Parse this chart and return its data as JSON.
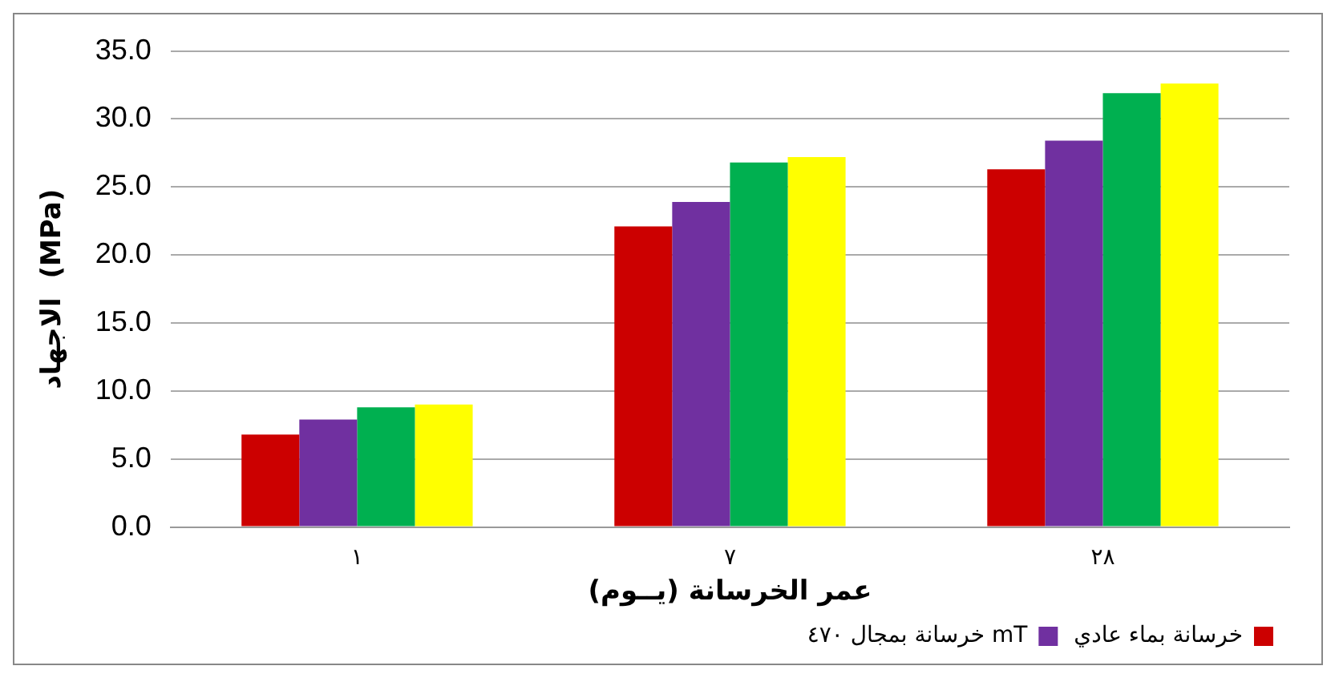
{
  "chart_data": {
    "type": "bar",
    "xlabel": "عمر الخرسانة (يــوم)",
    "ylabel": "الاجهاد  (MPa)",
    "categories": [
      "١",
      "٧",
      "٢٨"
    ],
    "series": [
      {
        "name": "خرسانة بماء عادي",
        "color": "#cc0000",
        "values": [
          6.8,
          22.1,
          26.3
        ]
      },
      {
        "name": "خرسانة بمجال ٤٧٠ mT",
        "color": "#7030a0",
        "values": [
          7.9,
          23.9,
          28.4
        ]
      },
      {
        "color": "#00b050",
        "values": [
          8.8,
          26.8,
          31.9
        ]
      },
      {
        "color": "#ffff00",
        "values": [
          9.0,
          27.2,
          32.6
        ]
      }
    ],
    "ylim": [
      0,
      35
    ],
    "yticks": [
      {
        "value": 0,
        "label": "0.0"
      },
      {
        "value": 5,
        "label": "5.0"
      },
      {
        "value": 10,
        "label": "10.0"
      },
      {
        "value": 15,
        "label": "15.0"
      },
      {
        "value": 20,
        "label": "20.0"
      },
      {
        "value": 25,
        "label": "25.0"
      },
      {
        "value": 30,
        "label": "30.0"
      },
      {
        "value": 35,
        "label": "35.0"
      }
    ],
    "grid": "y",
    "legend": "bottom"
  }
}
